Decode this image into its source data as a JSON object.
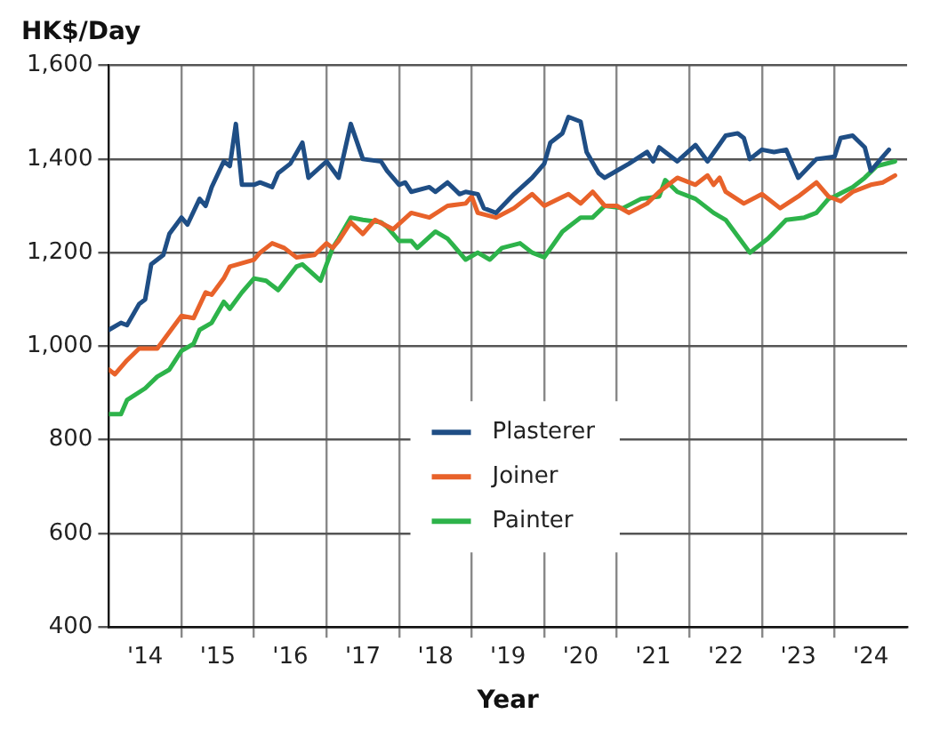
{
  "chart_data": {
    "type": "line",
    "ylabel": "HK$/Day",
    "xlabel": "Year",
    "xlim": [
      "2014",
      "2025"
    ],
    "xticks": [
      {
        "value": "2014-07",
        "label": "'14"
      },
      {
        "value": "2015",
        "label": null
      },
      {
        "value": "2015-07",
        "label": "'15"
      },
      {
        "value": "2016",
        "label": null
      },
      {
        "value": "2016-07",
        "label": "'16"
      },
      {
        "value": "2017",
        "label": null
      },
      {
        "value": "2017-07",
        "label": "'17"
      },
      {
        "value": "2018",
        "label": null
      },
      {
        "value": "2018-07",
        "label": "'18"
      },
      {
        "value": "2019",
        "label": null
      },
      {
        "value": "2019-07",
        "label": "'19"
      },
      {
        "value": "2020",
        "label": null
      },
      {
        "value": "2020-07",
        "label": "'20"
      },
      {
        "value": "2021",
        "label": null
      },
      {
        "value": "2021-07",
        "label": "'21"
      },
      {
        "value": "2022",
        "label": null
      },
      {
        "value": "2022-07",
        "label": "'22"
      },
      {
        "value": "2023",
        "label": null
      },
      {
        "value": "2023-07",
        "label": "'23"
      },
      {
        "value": "2024",
        "label": null
      },
      {
        "value": "2024-07",
        "label": "'24"
      }
    ],
    "ylim": [
      400,
      1600
    ],
    "yticks": [
      {
        "value": 400,
        "label": "400"
      },
      {
        "value": 600,
        "label": "600"
      },
      {
        "value": 800,
        "label": "800"
      },
      {
        "value": 1000,
        "label": "1,000"
      },
      {
        "value": 1200,
        "label": "1,200"
      },
      {
        "value": 1400,
        "label": "1,400"
      },
      {
        "value": 1600,
        "label": "1,600"
      }
    ],
    "grid": true,
    "legend": "bottom",
    "marker": "none",
    "line_style": "solid",
    "series": [
      {
        "name": "Plasterer",
        "color": "#1f4e85",
        "x": [
          "2014-01",
          "2014-03",
          "2014-04",
          "2014-06",
          "2014-07",
          "2014-08",
          "2014-10",
          "2014-11",
          "2015-01",
          "2015-02",
          "2015-04",
          "2015-05",
          "2015-06",
          "2015-08",
          "2015-09",
          "2015-10",
          "2015-11",
          "2016-01",
          "2016-02",
          "2016-04",
          "2016-05",
          "2016-07",
          "2016-09",
          "2016-10",
          "2017-01",
          "2017-03",
          "2017-05",
          "2017-07",
          "2017-10",
          "2017-11",
          "2018-01",
          "2018-02",
          "2018-03",
          "2018-06",
          "2018-07",
          "2018-09",
          "2018-11",
          "2018-12",
          "2019-02",
          "2019-03",
          "2019-05",
          "2019-08",
          "2019-11",
          "2020-01",
          "2020-02",
          "2020-04",
          "2020-05",
          "2020-07",
          "2020-08",
          "2020-10",
          "2020-11",
          "2021-01",
          "2021-03",
          "2021-06",
          "2021-07",
          "2021-08",
          "2021-11",
          "2022-02",
          "2022-04",
          "2022-07",
          "2022-09",
          "2022-10",
          "2022-11",
          "2023-01",
          "2023-03",
          "2023-05",
          "2023-07",
          "2023-10",
          "2024-01",
          "2024-02",
          "2024-04",
          "2024-06",
          "2024-07",
          "2024-09",
          "2024-10"
        ],
        "values": [
          1035,
          1050,
          1045,
          1090,
          1100,
          1175,
          1195,
          1240,
          1275,
          1260,
          1315,
          1300,
          1340,
          1395,
          1385,
          1475,
          1345,
          1345,
          1350,
          1340,
          1370,
          1390,
          1435,
          1360,
          1395,
          1360,
          1475,
          1400,
          1395,
          1375,
          1345,
          1350,
          1330,
          1340,
          1330,
          1350,
          1325,
          1330,
          1325,
          1295,
          1285,
          1325,
          1360,
          1390,
          1435,
          1455,
          1490,
          1480,
          1415,
          1370,
          1360,
          1375,
          1390,
          1415,
          1395,
          1425,
          1395,
          1430,
          1395,
          1450,
          1455,
          1445,
          1400,
          1420,
          1415,
          1420,
          1360,
          1400,
          1405,
          1445,
          1450,
          1425,
          1375,
          1405,
          1420
        ]
      },
      {
        "name": "Joiner",
        "color": "#e8622a",
        "x": [
          "2014-01",
          "2014-02",
          "2014-04",
          "2014-06",
          "2014-09",
          "2015-01",
          "2015-03",
          "2015-05",
          "2015-06",
          "2015-08",
          "2015-09",
          "2016-01",
          "2016-02",
          "2016-04",
          "2016-06",
          "2016-08",
          "2016-11",
          "2017-01",
          "2017-02",
          "2017-03",
          "2017-05",
          "2017-07",
          "2017-09",
          "2017-12",
          "2018-03",
          "2018-06",
          "2018-09",
          "2018-12",
          "2019-01",
          "2019-02",
          "2019-05",
          "2019-08",
          "2019-11",
          "2020-01",
          "2020-05",
          "2020-07",
          "2020-09",
          "2020-11",
          "2021-01",
          "2021-03",
          "2021-06",
          "2021-08",
          "2021-11",
          "2022-02",
          "2022-04",
          "2022-05",
          "2022-06",
          "2022-07",
          "2022-10",
          "2023-01",
          "2023-04",
          "2023-07",
          "2023-10",
          "2023-12",
          "2024-02",
          "2024-04",
          "2024-07",
          "2024-09",
          "2024-11"
        ],
        "values": [
          950,
          940,
          970,
          995,
          995,
          1065,
          1060,
          1115,
          1110,
          1145,
          1170,
          1185,
          1200,
          1220,
          1210,
          1190,
          1195,
          1220,
          1210,
          1225,
          1265,
          1240,
          1270,
          1250,
          1285,
          1275,
          1300,
          1305,
          1320,
          1285,
          1275,
          1295,
          1325,
          1300,
          1325,
          1305,
          1330,
          1300,
          1300,
          1285,
          1305,
          1330,
          1360,
          1345,
          1365,
          1345,
          1360,
          1330,
          1305,
          1325,
          1295,
          1320,
          1350,
          1320,
          1310,
          1330,
          1345,
          1350,
          1365
        ]
      },
      {
        "name": "Painter",
        "color": "#2db34a",
        "x": [
          "2014-01",
          "2014-03",
          "2014-04",
          "2014-07",
          "2014-09",
          "2014-11",
          "2015-01",
          "2015-03",
          "2015-04",
          "2015-06",
          "2015-08",
          "2015-09",
          "2015-11",
          "2016-01",
          "2016-03",
          "2016-05",
          "2016-08",
          "2016-09",
          "2016-12",
          "2017-02",
          "2017-03",
          "2017-05",
          "2017-07",
          "2017-10",
          "2017-11",
          "2018-01",
          "2018-03",
          "2018-04",
          "2018-07",
          "2018-09",
          "2018-12",
          "2019-02",
          "2019-04",
          "2019-06",
          "2019-09",
          "2019-11",
          "2020-01",
          "2020-04",
          "2020-07",
          "2020-09",
          "2020-11",
          "2021-02",
          "2021-05",
          "2021-08",
          "2021-09",
          "2021-11",
          "2022-02",
          "2022-05",
          "2022-07",
          "2022-11",
          "2023-02",
          "2023-05",
          "2023-08",
          "2023-10",
          "2023-12",
          "2024-01",
          "2024-04",
          "2024-06",
          "2024-08",
          "2024-11"
        ],
        "values": [
          855,
          855,
          885,
          910,
          935,
          950,
          990,
          1005,
          1035,
          1050,
          1095,
          1080,
          1115,
          1145,
          1140,
          1120,
          1170,
          1175,
          1140,
          1210,
          1230,
          1275,
          1270,
          1265,
          1255,
          1225,
          1225,
          1210,
          1245,
          1230,
          1185,
          1200,
          1185,
          1210,
          1220,
          1200,
          1190,
          1245,
          1275,
          1275,
          1300,
          1295,
          1315,
          1320,
          1355,
          1330,
          1315,
          1285,
          1270,
          1200,
          1230,
          1270,
          1275,
          1285,
          1315,
          1320,
          1340,
          1360,
          1385,
          1395
        ]
      }
    ]
  }
}
